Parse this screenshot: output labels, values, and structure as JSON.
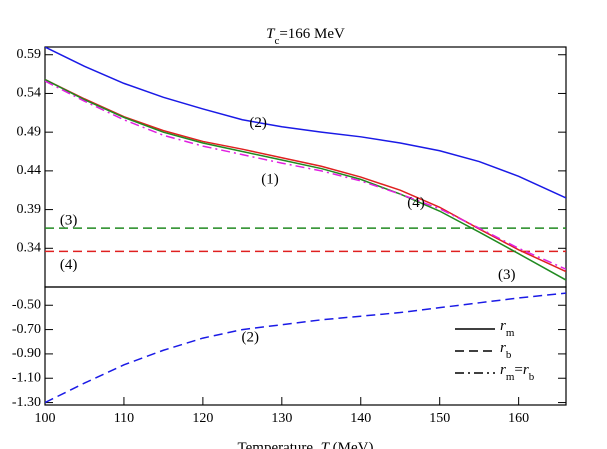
{
  "chart_data": [
    {
      "type": "line",
      "title": [
        {
          "t": "T",
          "italic": true
        },
        {
          "t": "c",
          "sub": true
        },
        {
          "t": "=166 MeV"
        }
      ],
      "x": [
        100,
        105,
        110,
        115,
        120,
        125,
        130,
        135,
        140,
        145,
        150,
        155,
        160,
        166
      ],
      "xlim": [
        100,
        166
      ],
      "ylim": [
        0.29,
        0.6
      ],
      "yticks": [
        0.34,
        0.39,
        0.44,
        0.49,
        0.54,
        0.59
      ],
      "series": [
        {
          "color": "#1a1ae6",
          "dash": "solid",
          "values": [
            0.6,
            0.575,
            0.553,
            0.535,
            0.52,
            0.506,
            0.497,
            0.49,
            0.484,
            0.476,
            0.466,
            0.452,
            0.433,
            0.405
          ]
        },
        {
          "color": "#e02020",
          "dash": "solid",
          "values": [
            0.558,
            0.533,
            0.51,
            0.492,
            0.478,
            0.468,
            0.457,
            0.446,
            0.432,
            0.415,
            0.393,
            0.365,
            0.338,
            0.31
          ]
        },
        {
          "color": "#208a20",
          "dash": "solid",
          "values": [
            0.558,
            0.532,
            0.509,
            0.49,
            0.476,
            0.465,
            0.454,
            0.443,
            0.429,
            0.41,
            0.388,
            0.361,
            0.333,
            0.299
          ]
        },
        {
          "color": "#e020e0",
          "dash": "dashdot",
          "values": [
            0.556,
            0.53,
            0.506,
            0.486,
            0.472,
            0.461,
            0.45,
            0.44,
            0.427,
            0.41,
            0.391,
            0.366,
            0.34,
            0.313
          ]
        }
      ],
      "hlines": [
        {
          "y": 0.366,
          "color": "#208a20",
          "dash": "dashed"
        },
        {
          "y": 0.336,
          "color": "#e02020",
          "dash": "dashed"
        }
      ],
      "annotations": [
        {
          "text": "(2)",
          "x": 127,
          "y": 0.501,
          "color": "#1a1ae6"
        },
        {
          "text": "(1)",
          "x": 128.5,
          "y": 0.428,
          "color": "#e020e0"
        },
        {
          "text": "(4)",
          "x": 147,
          "y": 0.398,
          "color": "#e02020"
        },
        {
          "text": "(3)",
          "x": 103,
          "y": 0.375,
          "color": "#208a20"
        },
        {
          "text": "(4)",
          "x": 103,
          "y": 0.318,
          "color": "#e02020"
        },
        {
          "text": "(3)",
          "x": 158.5,
          "y": 0.305,
          "color": "#208a20"
        }
      ]
    },
    {
      "type": "line",
      "x": [
        100,
        105,
        110,
        115,
        120,
        125,
        130,
        135,
        140,
        145,
        150,
        155,
        160,
        166
      ],
      "xlim": [
        100,
        166
      ],
      "ylim": [
        -1.32,
        -0.35
      ],
      "xticks": [
        100,
        110,
        120,
        130,
        140,
        150,
        160
      ],
      "yticks": [
        {
          "value": -1.3,
          "label": "-1.30"
        },
        {
          "value": -1.1,
          "label": "-1.10"
        },
        {
          "value": -0.9,
          "label": "-0.90"
        },
        {
          "value": -0.7,
          "label": "-0.70"
        },
        {
          "value": -0.5,
          "label": "-0.50"
        }
      ],
      "xlabel": [
        {
          "t": "Temperature, "
        },
        {
          "t": "T",
          "italic": true
        },
        {
          "t": " (MeV)"
        }
      ],
      "series": [
        {
          "color": "#1a1ae6",
          "dash": "dashed",
          "values": [
            -1.3,
            -1.14,
            -0.99,
            -0.87,
            -0.77,
            -0.7,
            -0.66,
            -0.62,
            -0.59,
            -0.56,
            -0.52,
            -0.48,
            -0.44,
            -0.4
          ]
        }
      ],
      "annotations": [
        {
          "text": "(2)",
          "x": 126,
          "y": -0.77,
          "color": "#1a1ae6"
        }
      ],
      "legend": [
        {
          "dash": "solid",
          "label": [
            {
              "t": "r",
              "italic": true
            },
            {
              "t": "m",
              "sub": true
            }
          ]
        },
        {
          "dash": "dashed",
          "label": [
            {
              "t": "r",
              "italic": true
            },
            {
              "t": "b",
              "sub": true
            }
          ]
        },
        {
          "dash": "dashdot",
          "label": [
            {
              "t": "r",
              "italic": true
            },
            {
              "t": "m",
              "sub": true
            },
            {
              "t": "="
            },
            {
              "t": "r",
              "italic": true
            },
            {
              "t": "b",
              "sub": true
            }
          ]
        }
      ]
    }
  ]
}
